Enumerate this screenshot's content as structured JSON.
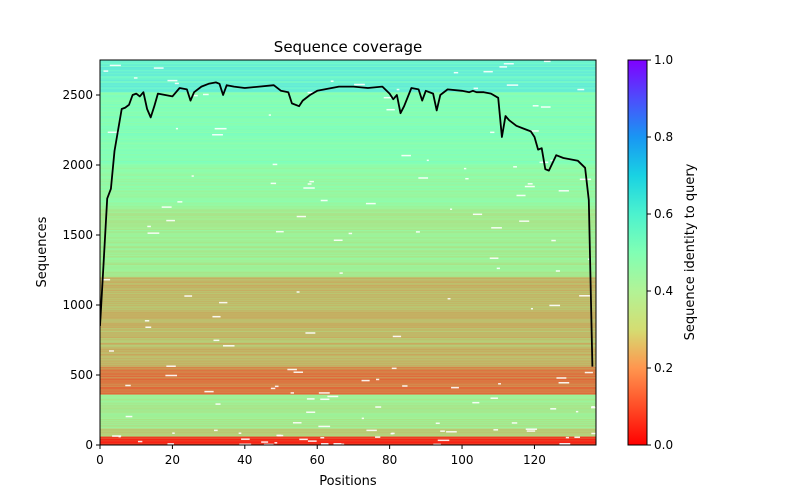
{
  "chart_data": {
    "type": "heatmap",
    "title": "Sequence coverage",
    "xlabel": "Positions",
    "ylabel": "Sequences",
    "xlim": [
      0,
      137
    ],
    "ylim": [
      0,
      2750
    ],
    "x_ticks": [
      0,
      20,
      40,
      60,
      80,
      100,
      120
    ],
    "y_ticks": [
      0,
      500,
      1000,
      1500,
      2000,
      2500
    ],
    "colorbar": {
      "label": "Sequence identity to query",
      "range": [
        0.0,
        1.0
      ],
      "ticks": [
        "0.0",
        "0.2",
        "0.4",
        "0.6",
        "0.8",
        "1.0"
      ],
      "colormap": "rainbow_r"
    },
    "identity_bands": [
      {
        "from": 0,
        "to": 60,
        "identity": 0.06
      },
      {
        "from": 60,
        "to": 120,
        "identity": 0.3
      },
      {
        "from": 120,
        "to": 360,
        "identity": 0.38
      },
      {
        "from": 360,
        "to": 560,
        "identity": 0.16
      },
      {
        "from": 560,
        "to": 1200,
        "identity": 0.26
      },
      {
        "from": 1200,
        "to": 1700,
        "identity": 0.38
      },
      {
        "from": 1700,
        "to": 2000,
        "identity": 0.44
      },
      {
        "from": 2000,
        "to": 2520,
        "identity": 0.5
      },
      {
        "from": 2520,
        "to": 2750,
        "identity": 0.6
      }
    ],
    "series": [
      {
        "name": "coverage",
        "color": "#000000",
        "x": [
          0,
          1,
          2,
          3,
          4,
          5,
          6,
          7,
          8,
          9,
          10,
          11,
          12,
          13,
          14,
          15,
          16,
          18,
          20,
          22,
          24,
          25,
          26,
          28,
          30,
          32,
          33,
          34,
          35,
          37,
          40,
          44,
          48,
          50,
          52,
          53,
          55,
          56,
          58,
          60,
          62,
          64,
          66,
          70,
          74,
          78,
          80,
          81,
          82,
          83,
          84,
          86,
          88,
          89,
          90,
          92,
          93,
          94,
          96,
          100,
          102,
          103,
          104,
          106,
          108,
          110,
          111,
          112,
          113,
          115,
          117,
          119,
          120,
          121,
          122,
          123,
          124,
          126,
          128,
          130,
          132,
          134,
          135,
          136
        ],
        "y": [
          850,
          1300,
          1760,
          1830,
          2100,
          2250,
          2400,
          2410,
          2430,
          2500,
          2510,
          2490,
          2520,
          2400,
          2340,
          2420,
          2510,
          2500,
          2490,
          2550,
          2540,
          2460,
          2520,
          2560,
          2580,
          2590,
          2580,
          2500,
          2570,
          2560,
          2550,
          2560,
          2570,
          2530,
          2520,
          2440,
          2420,
          2460,
          2500,
          2530,
          2540,
          2550,
          2560,
          2560,
          2550,
          2560,
          2510,
          2470,
          2500,
          2370,
          2420,
          2550,
          2540,
          2460,
          2530,
          2510,
          2390,
          2500,
          2540,
          2530,
          2520,
          2530,
          2520,
          2520,
          2510,
          2480,
          2200,
          2350,
          2320,
          2280,
          2260,
          2240,
          2200,
          2110,
          2120,
          1970,
          1960,
          2070,
          2050,
          2040,
          2030,
          1980,
          1750,
          560
        ]
      }
    ]
  }
}
